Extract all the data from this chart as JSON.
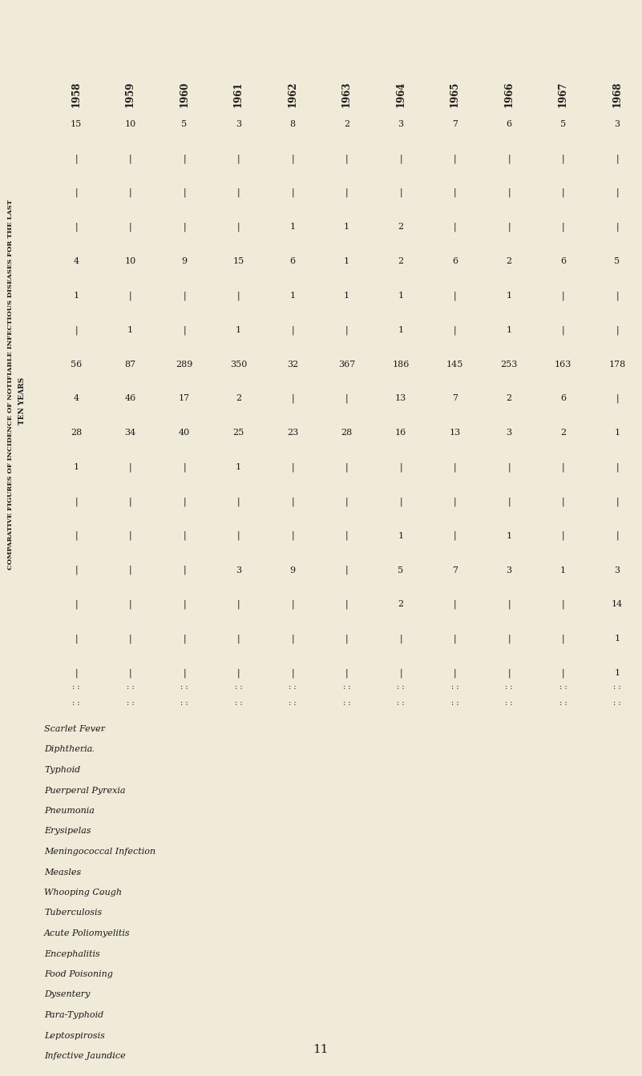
{
  "title_line1": "COMPARATIVE FIGURES OF INCIDENCE OF NOTIFIABLE INFECTIOUS DISEASES FOR THE LAST",
  "title_line2": "TEN YEARS",
  "years": [
    "1958",
    "1959",
    "1960",
    "1961",
    "1962",
    "1963",
    "1964",
    "1965",
    "1966",
    "1967",
    "1968"
  ],
  "diseases": [
    "Scarlet Fever",
    "Diphtheria",
    "Typhoid",
    "Puerperal Pyrexia",
    "Pneumonia",
    "Erysipelas",
    "Meningococcal Infection",
    "Measles",
    "Whooping Cough",
    "Tuberculosis",
    "Acute Poliomyelitis",
    "Encephalitis",
    "Food Poisoning",
    "Dysentery",
    "Para-Typhoid",
    "Leptospirosis",
    "Infective Jaundice"
  ],
  "disease_dots": [
    " . . .",
    " . . .",
    " . .",
    "",
    " . .",
    " . .",
    "",
    " . .",
    " . .",
    "",
    "",
    "",
    "",
    " . :",
    "",
    "",
    " . ."
  ],
  "data": [
    [
      15,
      10,
      5,
      3,
      8,
      2,
      3,
      7,
      6,
      5,
      3
    ],
    [
      "-",
      "-",
      "-",
      "-",
      "-",
      "-",
      "-",
      "-",
      "-",
      "-",
      "-"
    ],
    [
      "-",
      "-",
      "-",
      "-",
      "-",
      "-",
      "-",
      "-",
      "-",
      "-",
      "-"
    ],
    [
      "-",
      "-",
      "-",
      "-",
      1,
      1,
      2,
      "-",
      "-",
      "-",
      "-"
    ],
    [
      4,
      10,
      9,
      15,
      6,
      1,
      2,
      6,
      2,
      6,
      5
    ],
    [
      1,
      "-",
      "-",
      "-",
      1,
      1,
      1,
      "-",
      1,
      "-",
      "-"
    ],
    [
      "-",
      1,
      "-",
      1,
      "-",
      "-",
      1,
      "-",
      1,
      "-",
      "-"
    ],
    [
      56,
      87,
      289,
      350,
      32,
      367,
      186,
      145,
      253,
      163,
      178
    ],
    [
      4,
      46,
      17,
      2,
      "-",
      "-",
      13,
      7,
      2,
      6,
      "-"
    ],
    [
      28,
      34,
      40,
      25,
      23,
      28,
      16,
      13,
      3,
      2,
      1
    ],
    [
      1,
      "-",
      "-",
      1,
      "-",
      "-",
      "-",
      "-",
      "-",
      "-",
      "-"
    ],
    [
      "-",
      "-",
      "-",
      "-",
      "-",
      "-",
      "-",
      "-",
      "-",
      "-",
      "-"
    ],
    [
      "-",
      "-",
      "-",
      "-",
      "-",
      "-",
      1,
      "-",
      1,
      "-",
      "-"
    ],
    [
      "-",
      "-",
      "-",
      3,
      9,
      "-",
      5,
      7,
      3,
      1,
      3
    ],
    [
      "-",
      "-",
      "-",
      "-",
      "-",
      "-",
      2,
      "-",
      "-",
      "-",
      14
    ],
    [
      "-",
      "-",
      "-",
      "-",
      "-",
      "-",
      "-",
      "-",
      "-",
      "-",
      1
    ],
    [
      "-",
      "-",
      "-",
      "-",
      "-",
      "-",
      "-",
      "-",
      "-",
      "-",
      1
    ]
  ],
  "bg_color": "#f0ead8",
  "text_color": "#1a1a1a",
  "page_number": "11"
}
